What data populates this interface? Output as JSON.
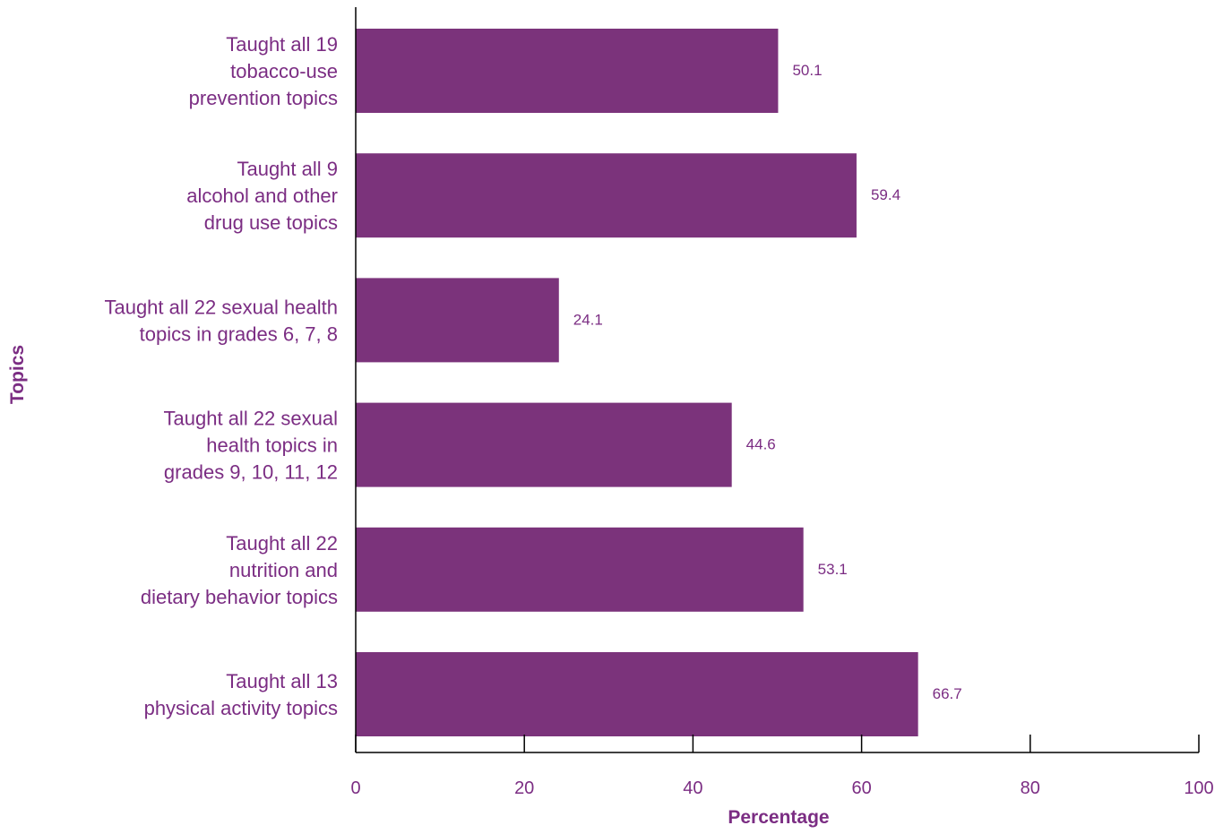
{
  "chart_data": {
    "type": "bar",
    "orientation": "horizontal",
    "categories": [
      [
        "Taught all 19",
        "tobacco-use",
        "prevention topics"
      ],
      [
        "Taught all 9",
        "alcohol and other",
        "drug use topics"
      ],
      [
        "Taught all 22 sexual health",
        "topics in grades 6, 7, 8"
      ],
      [
        "Taught all 22 sexual",
        "health topics in",
        "grades 9, 10, 11, 12"
      ],
      [
        "Taught all 22",
        "nutrition and",
        "dietary behavior topics"
      ],
      [
        "Taught all 13",
        "physical activity topics"
      ]
    ],
    "values": [
      50.1,
      59.4,
      24.1,
      44.6,
      53.1,
      66.7
    ],
    "value_labels": [
      "50.1",
      "59.4",
      "24.1",
      "44.6",
      "53.1",
      "66.7"
    ],
    "xlabel": "Percentage",
    "ylabel": "Topics",
    "xlim": [
      0,
      100
    ],
    "xticks": [
      0,
      20,
      40,
      60,
      80,
      100
    ],
    "xtick_labels": [
      "0",
      "20",
      "40",
      "60",
      "80",
      "100"
    ],
    "grid": false,
    "legend": "none",
    "colors": {
      "bar": "#7b337b",
      "text": "#7b2d83",
      "axis": "#000000"
    }
  }
}
